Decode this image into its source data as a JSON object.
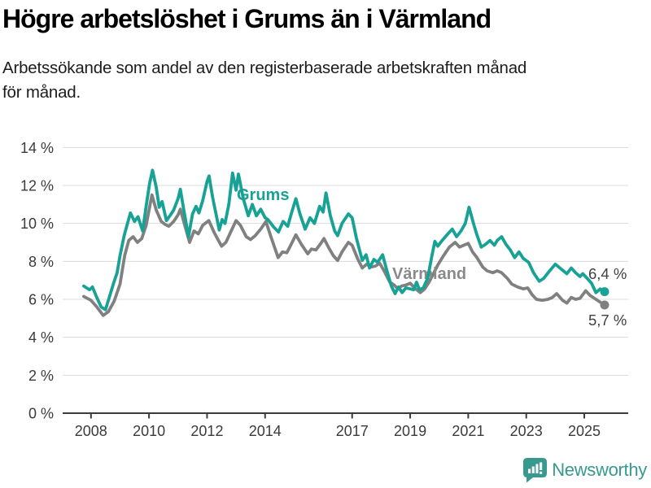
{
  "header": {
    "title": "Högre arbetslöshet i Grums än i Värmland",
    "subtitle_lines": [
      "Arbetssökande som andel av den registerbaserade arbetskraften månad",
      "för månad."
    ]
  },
  "footer": {
    "brand": "Newsworthy",
    "logo_icon": "bar-chart-speech-bubble-icon",
    "brand_color": "#38998f"
  },
  "chart_data": {
    "type": "line",
    "title": "Högre arbetslöshet i Grums än i Värmland",
    "subtitle": "Arbetssökande som andel av den registerbaserade arbetskraften månad för månad.",
    "xlabel": "",
    "ylabel": "",
    "grid": "horizontal",
    "legend_position": "inline-labels",
    "x_axis": {
      "range": [
        2007.6,
        2026.3
      ],
      "ticks": [
        {
          "value": 2008,
          "label": "2008"
        },
        {
          "value": 2010,
          "label": "2010"
        },
        {
          "value": 2012,
          "label": "2012"
        },
        {
          "value": 2014,
          "label": "2014"
        },
        {
          "value": 2017,
          "label": "2017"
        },
        {
          "value": 2019,
          "label": "2019"
        },
        {
          "value": 2021,
          "label": "2021"
        },
        {
          "value": 2023,
          "label": "2023"
        },
        {
          "value": 2025,
          "label": "2025"
        }
      ]
    },
    "y_axis": {
      "range": [
        0,
        14
      ],
      "ticks": [
        {
          "value": 0,
          "label": "0 %"
        },
        {
          "value": 2,
          "label": "2 %"
        },
        {
          "value": 4,
          "label": "4 %"
        },
        {
          "value": 6,
          "label": "6 %"
        },
        {
          "value": 8,
          "label": "8 %"
        },
        {
          "value": 10,
          "label": "10 %"
        },
        {
          "value": 12,
          "label": "12 %"
        },
        {
          "value": 14,
          "label": "14 %"
        }
      ]
    },
    "colors": {
      "grums": "#17a295",
      "varmland": "#808080",
      "varmland_label": "#8a8a8a",
      "grid": "#dcdcdc",
      "axis": "#3b3b3b"
    },
    "series": [
      {
        "id": "varmland",
        "name": "Värmland",
        "color": "#808080",
        "label_color": "#8a8a8a",
        "end_value_label": "5,7 %",
        "points": [
          [
            2007.75,
            6.15
          ],
          [
            2008.0,
            5.95
          ],
          [
            2008.2,
            5.6
          ],
          [
            2008.42,
            5.15
          ],
          [
            2008.6,
            5.35
          ],
          [
            2008.8,
            5.9
          ],
          [
            2009.0,
            6.8
          ],
          [
            2009.16,
            8.3
          ],
          [
            2009.3,
            9.1
          ],
          [
            2009.45,
            9.3
          ],
          [
            2009.6,
            9.0
          ],
          [
            2009.75,
            9.2
          ],
          [
            2009.9,
            9.9
          ],
          [
            2010.1,
            11.5
          ],
          [
            2010.25,
            10.7
          ],
          [
            2010.42,
            10.1
          ],
          [
            2010.55,
            9.95
          ],
          [
            2010.68,
            9.85
          ],
          [
            2010.85,
            10.1
          ],
          [
            2011.0,
            10.45
          ],
          [
            2011.08,
            10.75
          ],
          [
            2011.25,
            9.8
          ],
          [
            2011.4,
            9.0
          ],
          [
            2011.55,
            9.6
          ],
          [
            2011.7,
            9.45
          ],
          [
            2011.85,
            9.9
          ],
          [
            2012.06,
            10.15
          ],
          [
            2012.25,
            9.5
          ],
          [
            2012.5,
            8.8
          ],
          [
            2012.65,
            9.0
          ],
          [
            2012.8,
            9.5
          ],
          [
            2013.0,
            10.15
          ],
          [
            2013.15,
            9.9
          ],
          [
            2013.35,
            9.3
          ],
          [
            2013.5,
            9.15
          ],
          [
            2013.66,
            9.35
          ],
          [
            2013.85,
            9.7
          ],
          [
            2014.03,
            10.1
          ],
          [
            2014.2,
            9.3
          ],
          [
            2014.45,
            8.2
          ],
          [
            2014.6,
            8.5
          ],
          [
            2014.75,
            8.45
          ],
          [
            2014.9,
            8.9
          ],
          [
            2015.06,
            9.4
          ],
          [
            2015.25,
            8.9
          ],
          [
            2015.47,
            8.4
          ],
          [
            2015.6,
            8.65
          ],
          [
            2015.75,
            8.6
          ],
          [
            2015.9,
            8.9
          ],
          [
            2016.03,
            9.2
          ],
          [
            2016.2,
            8.7
          ],
          [
            2016.35,
            8.3
          ],
          [
            2016.5,
            8.05
          ],
          [
            2016.65,
            8.5
          ],
          [
            2016.87,
            9.0
          ],
          [
            2017.0,
            8.85
          ],
          [
            2017.2,
            8.1
          ],
          [
            2017.35,
            7.65
          ],
          [
            2017.5,
            7.85
          ],
          [
            2017.65,
            7.7
          ],
          [
            2017.8,
            7.75
          ],
          [
            2017.95,
            7.9
          ],
          [
            2018.1,
            7.5
          ],
          [
            2018.3,
            6.9
          ],
          [
            2018.45,
            6.75
          ],
          [
            2018.58,
            6.55
          ],
          [
            2018.7,
            6.7
          ],
          [
            2018.85,
            6.75
          ],
          [
            2019.0,
            6.85
          ],
          [
            2019.15,
            6.6
          ],
          [
            2019.35,
            6.35
          ],
          [
            2019.5,
            6.55
          ],
          [
            2019.65,
            6.9
          ],
          [
            2019.8,
            7.35
          ],
          [
            2019.95,
            7.8
          ],
          [
            2020.15,
            8.3
          ],
          [
            2020.35,
            8.75
          ],
          [
            2020.55,
            9.0
          ],
          [
            2020.7,
            8.75
          ],
          [
            2020.85,
            8.85
          ],
          [
            2021.0,
            8.95
          ],
          [
            2021.15,
            8.5
          ],
          [
            2021.3,
            8.2
          ],
          [
            2021.5,
            7.7
          ],
          [
            2021.65,
            7.5
          ],
          [
            2021.85,
            7.4
          ],
          [
            2022.0,
            7.5
          ],
          [
            2022.15,
            7.4
          ],
          [
            2022.35,
            7.1
          ],
          [
            2022.5,
            6.8
          ],
          [
            2022.7,
            6.65
          ],
          [
            2022.9,
            6.55
          ],
          [
            2023.05,
            6.6
          ],
          [
            2023.2,
            6.25
          ],
          [
            2023.35,
            6.0
          ],
          [
            2023.55,
            5.95
          ],
          [
            2023.75,
            6.0
          ],
          [
            2023.9,
            6.1
          ],
          [
            2024.05,
            6.3
          ],
          [
            2024.25,
            5.95
          ],
          [
            2024.4,
            5.8
          ],
          [
            2024.55,
            6.1
          ],
          [
            2024.7,
            6.0
          ],
          [
            2024.85,
            6.05
          ],
          [
            2025.05,
            6.45
          ],
          [
            2025.2,
            6.2
          ],
          [
            2025.35,
            6.05
          ],
          [
            2025.5,
            5.9
          ],
          [
            2025.7,
            5.7
          ]
        ]
      },
      {
        "id": "grums",
        "name": "Grums",
        "color": "#17a295",
        "label_color": "#17a295",
        "end_value_label": "6,4 %",
        "points": [
          [
            2007.75,
            6.7
          ],
          [
            2007.95,
            6.5
          ],
          [
            2008.05,
            6.65
          ],
          [
            2008.2,
            6.1
          ],
          [
            2008.35,
            5.6
          ],
          [
            2008.5,
            5.45
          ],
          [
            2008.65,
            6.2
          ],
          [
            2008.78,
            6.85
          ],
          [
            2008.9,
            7.4
          ],
          [
            2009.0,
            8.3
          ],
          [
            2009.15,
            9.4
          ],
          [
            2009.36,
            10.55
          ],
          [
            2009.5,
            10.1
          ],
          [
            2009.62,
            10.35
          ],
          [
            2009.78,
            9.6
          ],
          [
            2009.9,
            10.9
          ],
          [
            2010.02,
            12.1
          ],
          [
            2010.12,
            12.8
          ],
          [
            2010.25,
            11.9
          ],
          [
            2010.35,
            10.85
          ],
          [
            2010.45,
            11.15
          ],
          [
            2010.6,
            10.15
          ],
          [
            2010.72,
            10.4
          ],
          [
            2010.85,
            10.7
          ],
          [
            2011.0,
            11.3
          ],
          [
            2011.08,
            11.8
          ],
          [
            2011.2,
            10.7
          ],
          [
            2011.36,
            9.3
          ],
          [
            2011.5,
            10.5
          ],
          [
            2011.62,
            10.9
          ],
          [
            2011.72,
            10.55
          ],
          [
            2011.85,
            11.2
          ],
          [
            2012.0,
            12.2
          ],
          [
            2012.07,
            12.5
          ],
          [
            2012.2,
            11.3
          ],
          [
            2012.32,
            10.4
          ],
          [
            2012.42,
            9.65
          ],
          [
            2012.52,
            10.2
          ],
          [
            2012.62,
            10.0
          ],
          [
            2012.75,
            11.0
          ],
          [
            2012.88,
            12.65
          ],
          [
            2013.0,
            11.75
          ],
          [
            2013.08,
            12.6
          ],
          [
            2013.25,
            11.3
          ],
          [
            2013.42,
            10.4
          ],
          [
            2013.56,
            11.0
          ],
          [
            2013.7,
            10.4
          ],
          [
            2013.85,
            10.75
          ],
          [
            2014.0,
            10.3
          ],
          [
            2014.1,
            10.2
          ],
          [
            2014.3,
            9.8
          ],
          [
            2014.46,
            9.55
          ],
          [
            2014.62,
            10.1
          ],
          [
            2014.78,
            9.85
          ],
          [
            2014.9,
            10.5
          ],
          [
            2015.06,
            11.3
          ],
          [
            2015.2,
            10.5
          ],
          [
            2015.38,
            9.7
          ],
          [
            2015.55,
            10.3
          ],
          [
            2015.7,
            10.0
          ],
          [
            2015.88,
            10.9
          ],
          [
            2016.0,
            10.6
          ],
          [
            2016.1,
            11.6
          ],
          [
            2016.25,
            10.4
          ],
          [
            2016.4,
            9.6
          ],
          [
            2016.5,
            9.35
          ],
          [
            2016.65,
            10.0
          ],
          [
            2016.87,
            10.5
          ],
          [
            2017.0,
            10.3
          ],
          [
            2017.15,
            9.2
          ],
          [
            2017.35,
            8.05
          ],
          [
            2017.48,
            8.35
          ],
          [
            2017.6,
            7.65
          ],
          [
            2017.75,
            8.1
          ],
          [
            2017.88,
            7.95
          ],
          [
            2018.05,
            8.35
          ],
          [
            2018.2,
            7.5
          ],
          [
            2018.35,
            6.7
          ],
          [
            2018.48,
            6.3
          ],
          [
            2018.6,
            6.65
          ],
          [
            2018.72,
            6.35
          ],
          [
            2018.85,
            6.6
          ],
          [
            2019.0,
            6.55
          ],
          [
            2019.12,
            6.5
          ],
          [
            2019.22,
            6.9
          ],
          [
            2019.32,
            6.5
          ],
          [
            2019.45,
            6.6
          ],
          [
            2019.6,
            7.1
          ],
          [
            2019.75,
            8.3
          ],
          [
            2019.85,
            9.05
          ],
          [
            2019.95,
            8.8
          ],
          [
            2020.1,
            9.1
          ],
          [
            2020.3,
            9.45
          ],
          [
            2020.45,
            9.7
          ],
          [
            2020.6,
            9.3
          ],
          [
            2020.75,
            9.6
          ],
          [
            2020.9,
            10.0
          ],
          [
            2021.03,
            10.85
          ],
          [
            2021.2,
            9.9
          ],
          [
            2021.3,
            9.4
          ],
          [
            2021.45,
            8.75
          ],
          [
            2021.6,
            8.9
          ],
          [
            2021.75,
            9.1
          ],
          [
            2021.9,
            8.85
          ],
          [
            2022.0,
            9.1
          ],
          [
            2022.15,
            9.3
          ],
          [
            2022.3,
            8.9
          ],
          [
            2022.45,
            8.6
          ],
          [
            2022.6,
            8.2
          ],
          [
            2022.75,
            8.5
          ],
          [
            2022.9,
            8.15
          ],
          [
            2023.08,
            7.95
          ],
          [
            2023.25,
            7.4
          ],
          [
            2023.45,
            6.95
          ],
          [
            2023.6,
            7.1
          ],
          [
            2023.78,
            7.45
          ],
          [
            2024.0,
            7.85
          ],
          [
            2024.2,
            7.6
          ],
          [
            2024.4,
            7.35
          ],
          [
            2024.55,
            7.65
          ],
          [
            2024.7,
            7.4
          ],
          [
            2024.85,
            7.2
          ],
          [
            2024.95,
            7.35
          ],
          [
            2025.1,
            7.1
          ],
          [
            2025.25,
            6.85
          ],
          [
            2025.4,
            6.35
          ],
          [
            2025.55,
            6.55
          ],
          [
            2025.7,
            6.4
          ]
        ]
      }
    ]
  }
}
